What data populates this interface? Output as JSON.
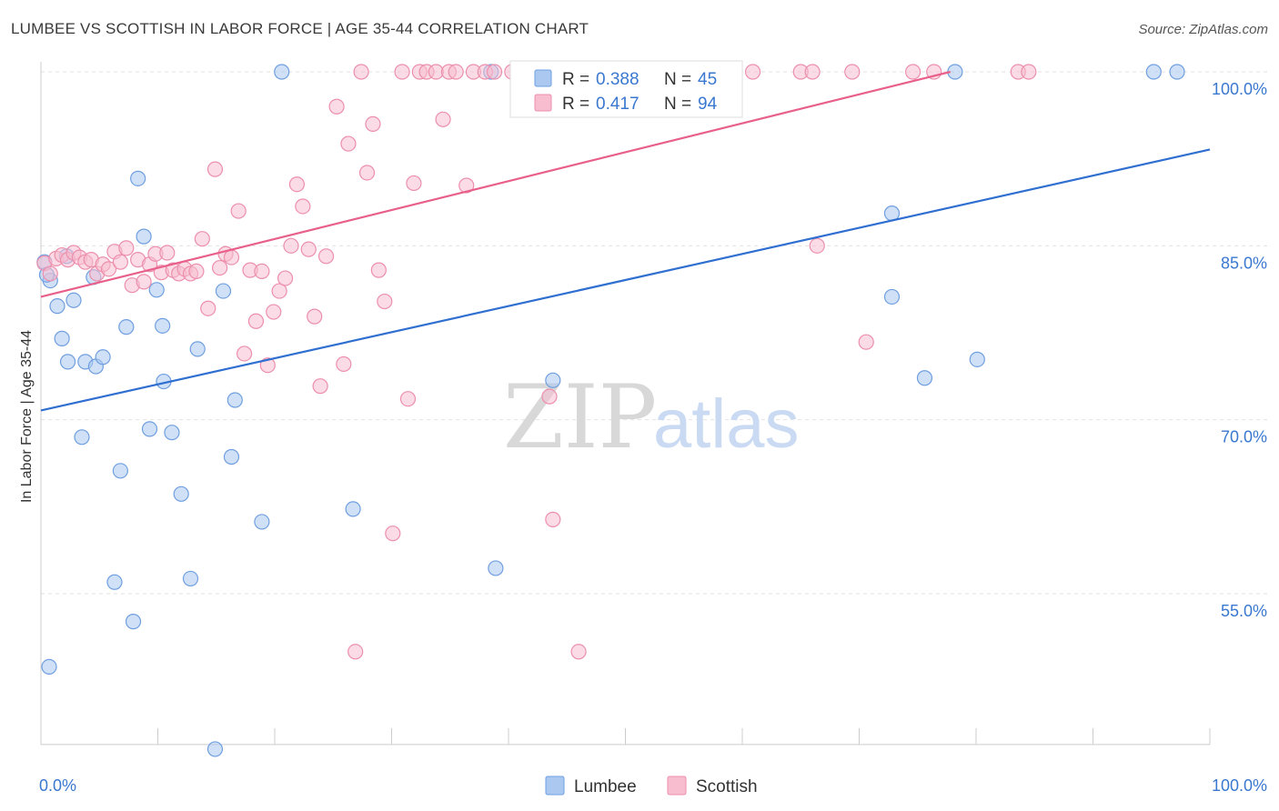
{
  "chart_data": {
    "type": "scatter",
    "title": "LUMBEE VS SCOTTISH IN LABOR FORCE | AGE 35-44 CORRELATION CHART",
    "source": "Source: ZipAtlas.com",
    "ylabel": "In Labor Force | Age 35-44",
    "xlabel": "",
    "xlim": [
      0,
      100
    ],
    "ylim": [
      42,
      100
    ],
    "x_tick_labels": [
      "0.0%",
      "100.0%"
    ],
    "y_ticks": [
      {
        "value": 100,
        "label": "100.0%"
      },
      {
        "value": 85,
        "label": "85.0%"
      },
      {
        "value": 70,
        "label": "70.0%"
      },
      {
        "value": 55,
        "label": "55.0%"
      }
    ],
    "grid": true,
    "legend_position": "bottom-center",
    "watermark": "ZIPatlas",
    "colors": {
      "lumbee_fill": "#aac8f0",
      "lumbee_stroke": "#6f9fe0",
      "lumbee_line": "#2f6fd0",
      "scottish_fill": "#f8bed0",
      "scottish_stroke": "#ec8fad",
      "scottish_line": "#e8608a",
      "axis_label": "#3a78d0"
    },
    "stats": [
      {
        "r_label": "R =",
        "r": "0.388",
        "n_label": "N =",
        "n": "45"
      },
      {
        "r_label": "R =",
        "r": "0.417",
        "n_label": "N =",
        "n": "94"
      }
    ],
    "series": [
      {
        "name": "Lumbee",
        "trend": {
          "x0": 0,
          "y0": 70.8,
          "x1": 100,
          "y1": 93.3
        },
        "points": [
          [
            0.3,
            83.6
          ],
          [
            0.8,
            82.0
          ],
          [
            1.4,
            79.8
          ],
          [
            1.8,
            77.0
          ],
          [
            2.3,
            75.0
          ],
          [
            2.8,
            80.3
          ],
          [
            3.5,
            68.5
          ],
          [
            3.8,
            75.0
          ],
          [
            4.5,
            82.3
          ],
          [
            4.7,
            74.6
          ],
          [
            5.3,
            75.4
          ],
          [
            6.3,
            56.0
          ],
          [
            6.8,
            65.6
          ],
          [
            7.3,
            78.0
          ],
          [
            7.9,
            52.6
          ],
          [
            8.3,
            90.8
          ],
          [
            8.8,
            85.8
          ],
          [
            9.3,
            69.2
          ],
          [
            9.9,
            81.2
          ],
          [
            10.4,
            78.1
          ],
          [
            10.5,
            73.3
          ],
          [
            11.2,
            68.9
          ],
          [
            12.0,
            63.6
          ],
          [
            12.8,
            56.3
          ],
          [
            13.4,
            76.1
          ],
          [
            14.9,
            41.6
          ],
          [
            15.6,
            81.1
          ],
          [
            16.3,
            66.8
          ],
          [
            16.6,
            71.7
          ],
          [
            18.9,
            61.2
          ],
          [
            20.6,
            100.0
          ],
          [
            26.7,
            62.3
          ],
          [
            38.5,
            100.0
          ],
          [
            38.9,
            57.2
          ],
          [
            43.8,
            73.4
          ],
          [
            72.8,
            87.8
          ],
          [
            72.8,
            80.6
          ],
          [
            75.6,
            73.6
          ],
          [
            78.2,
            100.0
          ],
          [
            80.1,
            75.2
          ],
          [
            95.2,
            100.0
          ],
          [
            97.2,
            100.0
          ],
          [
            0.7,
            48.7
          ],
          [
            2.2,
            84.1
          ],
          [
            0.5,
            82.5
          ]
        ]
      },
      {
        "name": "Scottish",
        "trend": {
          "x0": 0,
          "y0": 80.6,
          "x1": 77.8,
          "y1": 100.0
        },
        "points": [
          [
            0.3,
            83.5
          ],
          [
            0.8,
            82.6
          ],
          [
            1.3,
            83.9
          ],
          [
            1.8,
            84.2
          ],
          [
            2.3,
            83.8
          ],
          [
            2.8,
            84.4
          ],
          [
            3.3,
            84.0
          ],
          [
            3.8,
            83.6
          ],
          [
            4.3,
            83.8
          ],
          [
            4.8,
            82.6
          ],
          [
            5.3,
            83.4
          ],
          [
            5.8,
            83.0
          ],
          [
            6.3,
            84.5
          ],
          [
            6.8,
            83.6
          ],
          [
            7.3,
            84.8
          ],
          [
            7.8,
            81.6
          ],
          [
            8.3,
            83.8
          ],
          [
            8.8,
            81.9
          ],
          [
            9.3,
            83.4
          ],
          [
            9.8,
            84.3
          ],
          [
            10.3,
            82.7
          ],
          [
            10.8,
            84.4
          ],
          [
            11.3,
            82.9
          ],
          [
            11.8,
            82.6
          ],
          [
            12.3,
            83.0
          ],
          [
            12.8,
            82.6
          ],
          [
            13.3,
            82.8
          ],
          [
            13.8,
            85.6
          ],
          [
            14.3,
            79.6
          ],
          [
            14.9,
            91.6
          ],
          [
            15.3,
            83.1
          ],
          [
            15.8,
            84.3
          ],
          [
            16.3,
            84.0
          ],
          [
            16.9,
            88.0
          ],
          [
            17.4,
            75.7
          ],
          [
            17.9,
            82.9
          ],
          [
            18.4,
            78.5
          ],
          [
            18.9,
            82.8
          ],
          [
            19.4,
            74.7
          ],
          [
            19.9,
            79.3
          ],
          [
            20.4,
            81.1
          ],
          [
            20.9,
            82.2
          ],
          [
            21.4,
            85.0
          ],
          [
            21.9,
            90.3
          ],
          [
            22.4,
            88.4
          ],
          [
            22.9,
            84.7
          ],
          [
            23.4,
            78.9
          ],
          [
            23.9,
            72.9
          ],
          [
            24.4,
            84.1
          ],
          [
            25.3,
            97.0
          ],
          [
            25.9,
            74.8
          ],
          [
            26.3,
            93.8
          ],
          [
            26.9,
            50.0
          ],
          [
            27.4,
            100.0
          ],
          [
            27.9,
            91.3
          ],
          [
            28.4,
            95.5
          ],
          [
            28.9,
            82.9
          ],
          [
            29.4,
            80.2
          ],
          [
            30.1,
            60.2
          ],
          [
            30.9,
            100.0
          ],
          [
            31.4,
            71.8
          ],
          [
            31.9,
            90.4
          ],
          [
            32.4,
            100.0
          ],
          [
            33.0,
            100.0
          ],
          [
            33.8,
            100.0
          ],
          [
            34.4,
            95.9
          ],
          [
            34.9,
            100.0
          ],
          [
            35.5,
            100.0
          ],
          [
            36.4,
            90.2
          ],
          [
            37.0,
            100.0
          ],
          [
            38.0,
            100.0
          ],
          [
            38.8,
            100.0
          ],
          [
            40.3,
            100.0
          ],
          [
            42.3,
            100.0
          ],
          [
            43.5,
            72.0
          ],
          [
            43.8,
            61.4
          ],
          [
            45.3,
            100.0
          ],
          [
            47.9,
            100.0
          ],
          [
            50.3,
            100.0
          ],
          [
            51.0,
            100.0
          ],
          [
            53.5,
            100.0
          ],
          [
            56.5,
            100.0
          ],
          [
            58.7,
            100.0
          ],
          [
            60.9,
            100.0
          ],
          [
            65.0,
            100.0
          ],
          [
            66.0,
            100.0
          ],
          [
            66.4,
            85.0
          ],
          [
            69.4,
            100.0
          ],
          [
            70.6,
            76.7
          ],
          [
            74.6,
            100.0
          ],
          [
            76.4,
            100.0
          ],
          [
            83.6,
            100.0
          ],
          [
            84.5,
            100.0
          ],
          [
            46.0,
            50.0
          ]
        ]
      }
    ]
  }
}
